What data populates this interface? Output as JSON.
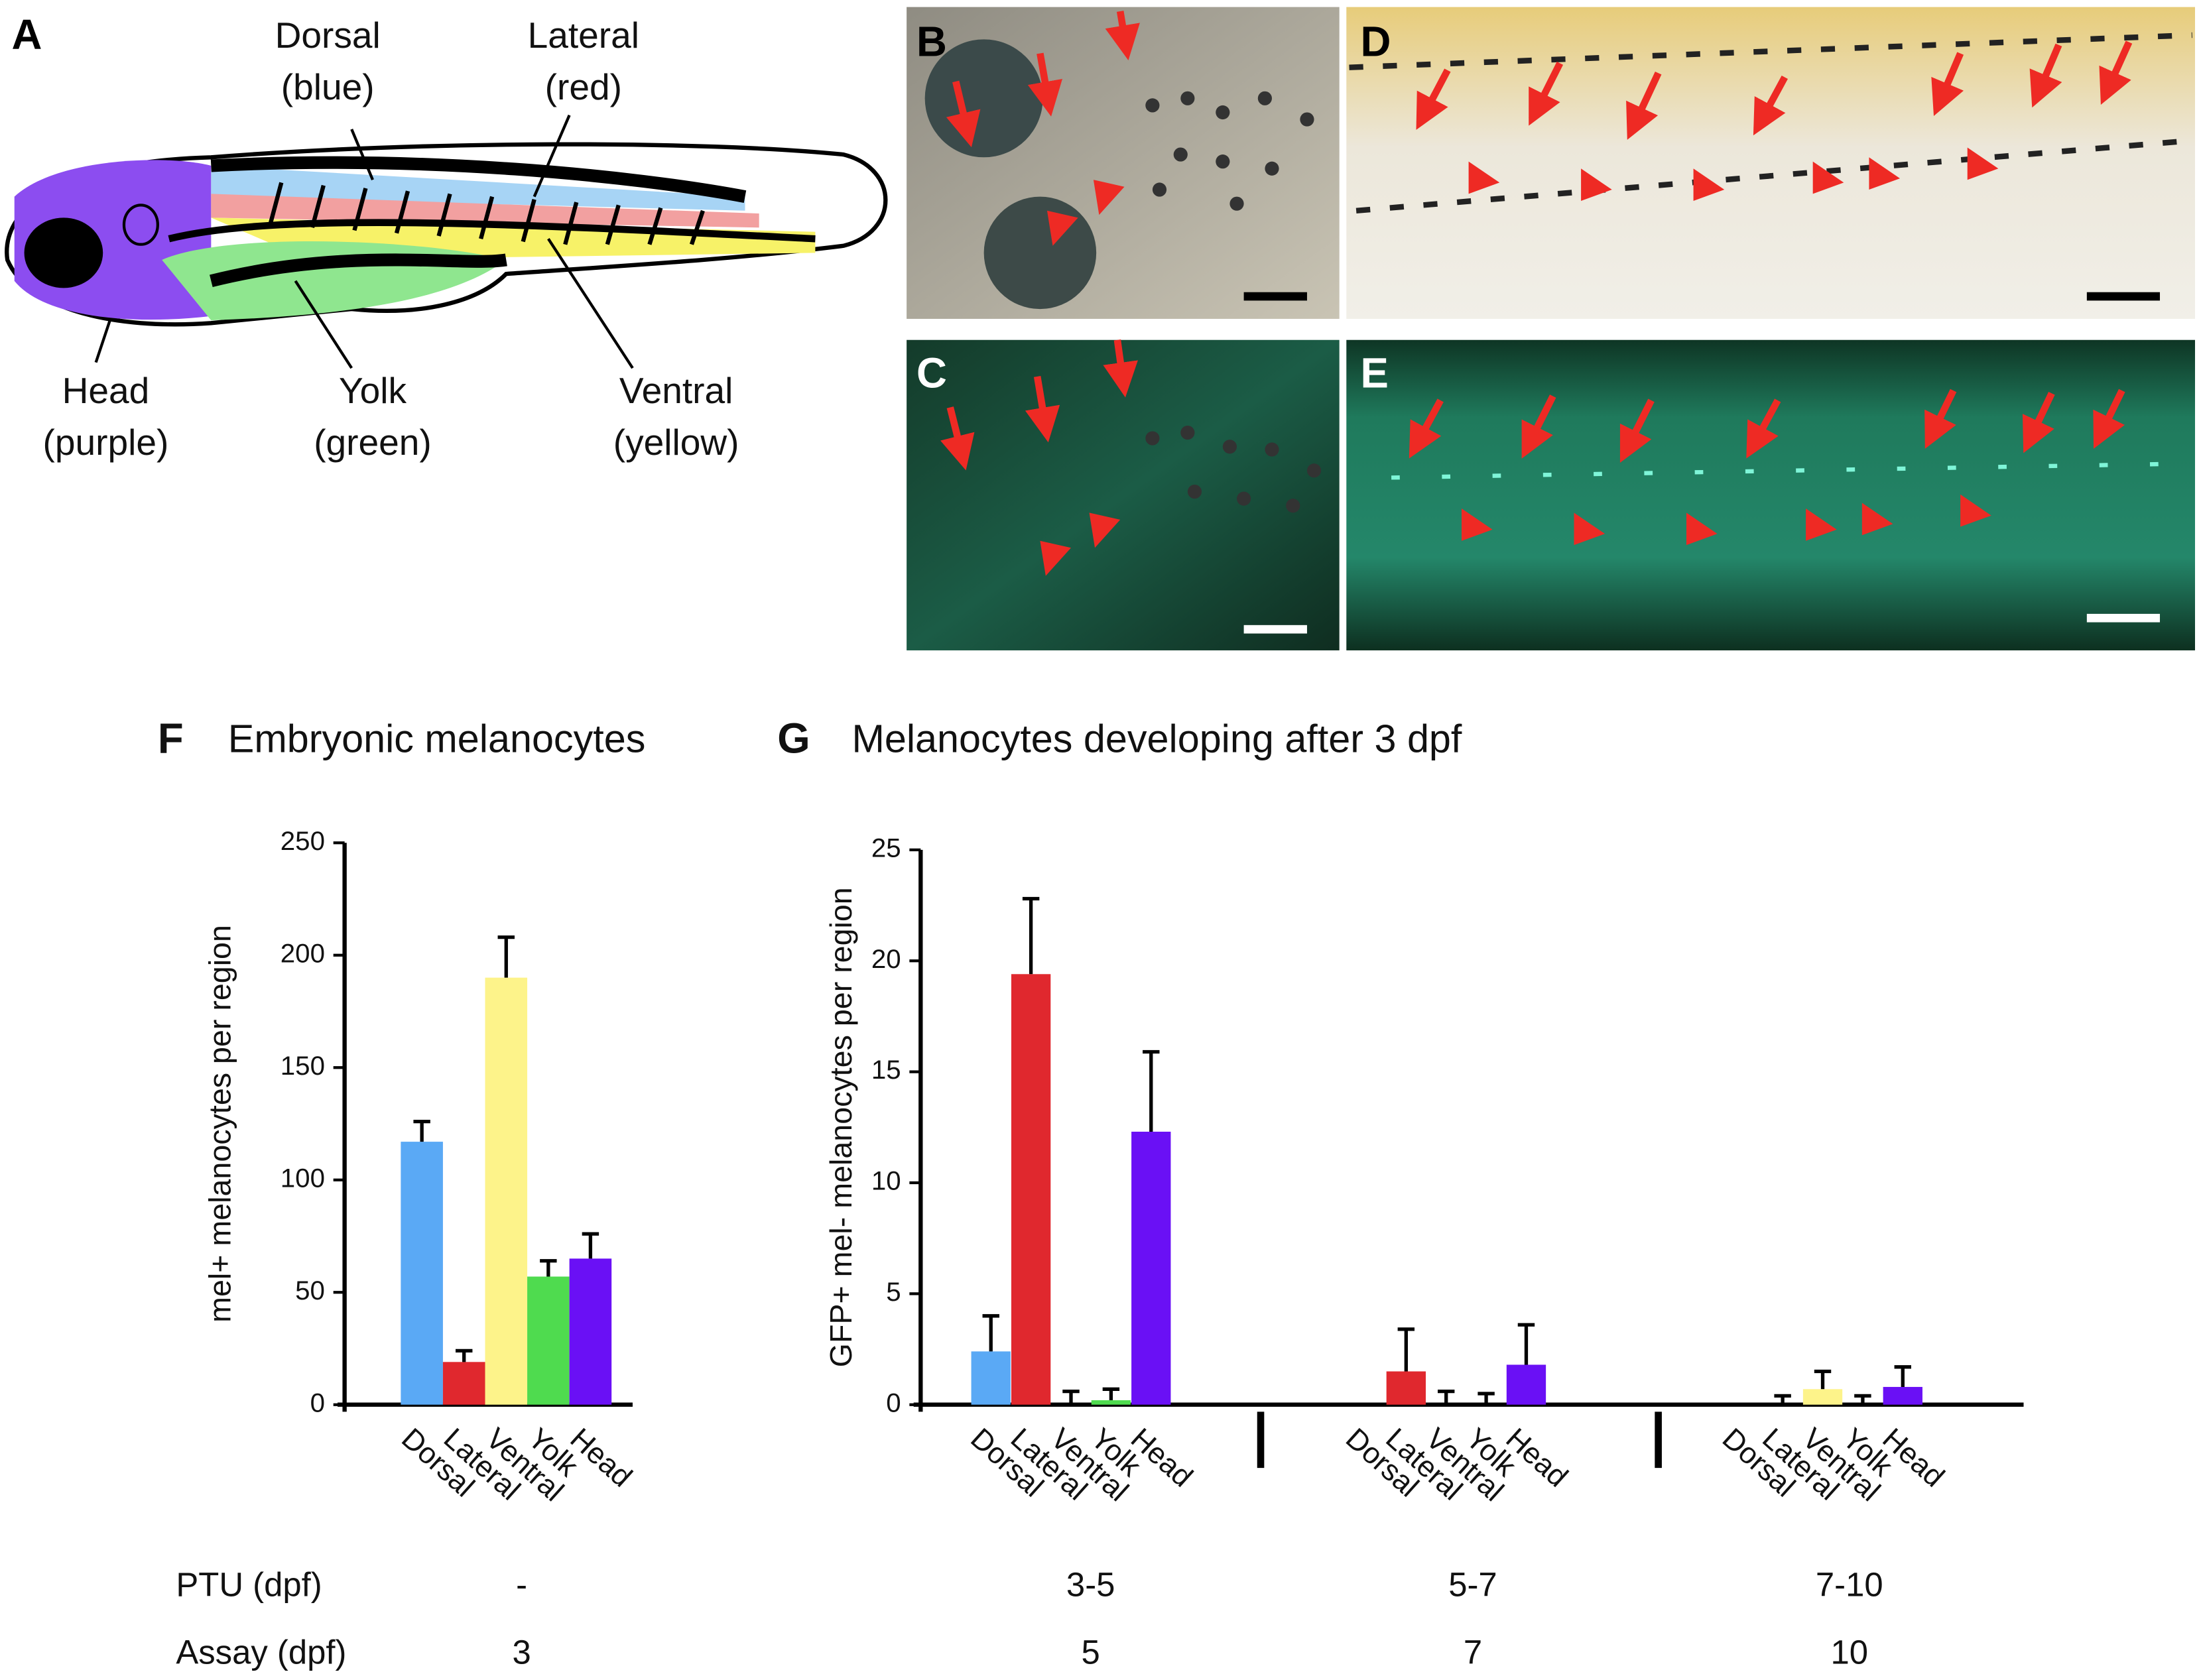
{
  "panel_labels": [
    "A",
    "B",
    "C",
    "D",
    "E"
  ],
  "diagram": {
    "labels": [
      {
        "lines": [
          "Dorsal",
          "(blue)"
        ]
      },
      {
        "lines": [
          "Lateral",
          "(red)"
        ]
      },
      {
        "lines": [
          "Head",
          "(purple)"
        ]
      },
      {
        "lines": [
          "Yolk",
          "(green)"
        ]
      },
      {
        "lines": [
          "Ventral",
          "(yellow)"
        ]
      }
    ]
  },
  "chart_data": [
    {
      "type": "bar",
      "label": "F",
      "title": "Embryonic melanocytes",
      "y_label": "mel+ melanocytes per region",
      "categories": [
        "Dorsal",
        "Lateral",
        "Ventral",
        "Yolk",
        "Head"
      ],
      "values": [
        117,
        19,
        190,
        57,
        65
      ],
      "errors": [
        9,
        5,
        18,
        7,
        11
      ],
      "colors": [
        "#5aa9f5",
        "#e0282e",
        "#fdf38a",
        "#4fdb4f",
        "#6a10f5"
      ],
      "ylim": [
        0,
        250
      ],
      "yticks": [
        0,
        50,
        100,
        150,
        200,
        250
      ]
    },
    {
      "type": "bar",
      "label": "G",
      "title": "Melanocytes developing after 3 dpf",
      "y_label": "GFP+ mel- melanocytes per region",
      "series": [
        {
          "name": "Dorsal",
          "color": "#5aa9f5",
          "values": [
            2.4,
            0,
            0
          ],
          "errors": [
            1.6,
            0,
            0
          ]
        },
        {
          "name": "Lateral",
          "color": "#e0282e",
          "values": [
            19.4,
            1.5,
            0
          ],
          "errors": [
            3.4,
            1.9,
            0.4
          ]
        },
        {
          "name": "Ventral",
          "color": "#fdf38a",
          "values": [
            0,
            0,
            0.7
          ],
          "errors": [
            0.6,
            0.6,
            0.8
          ]
        },
        {
          "name": "Yolk",
          "color": "#4fdb4f",
          "values": [
            0.2,
            0,
            0
          ],
          "errors": [
            0.5,
            0.5,
            0.4
          ]
        },
        {
          "name": "Head",
          "color": "#6a10f5",
          "values": [
            12.3,
            1.8,
            0.8
          ],
          "errors": [
            3.6,
            1.8,
            0.9
          ]
        }
      ],
      "ylim": [
        0,
        25
      ],
      "yticks": [
        0,
        5,
        10,
        15,
        20,
        25
      ]
    }
  ],
  "conditions": {
    "rows": [
      {
        "label": "PTU (dpf)",
        "values": [
          "-",
          "3-5",
          "5-7",
          "7-10"
        ]
      },
      {
        "label": "Assay (dpf)",
        "values": [
          "3",
          "5",
          "7",
          "10"
        ]
      }
    ]
  }
}
